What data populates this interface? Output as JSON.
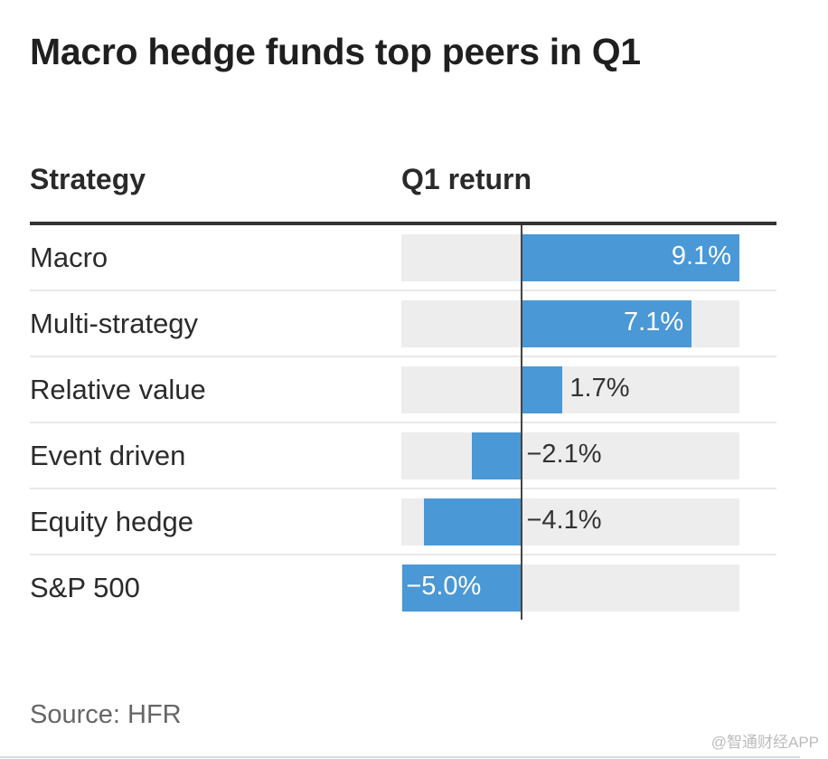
{
  "chart_data": {
    "type": "bar",
    "orientation": "horizontal",
    "title": "Macro hedge funds top peers in Q1",
    "column_headers": [
      "Strategy",
      "Q1 return"
    ],
    "categories": [
      "Macro",
      "Multi-strategy",
      "Relative value",
      "Event driven",
      "Equity hedge",
      "S&P 500"
    ],
    "values": [
      9.1,
      7.1,
      1.7,
      -2.1,
      -4.1,
      -5.0
    ],
    "value_labels": [
      "9.1%",
      "7.1%",
      "1.7%",
      "−2.1%",
      "−4.1%",
      "−5.0%"
    ],
    "xlim": [
      -5.05,
      9.1
    ],
    "xlabel": "",
    "ylabel": "",
    "bar_color": "#4a98d6",
    "track_color": "#ededed",
    "source": "Source: HFR"
  },
  "watermark": "@智通财经APP"
}
